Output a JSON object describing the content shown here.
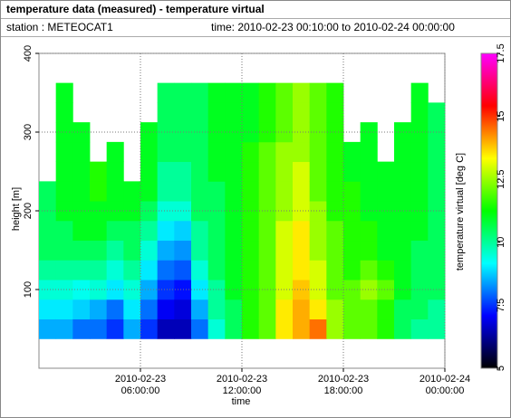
{
  "chart_data": {
    "type": "heatmap",
    "title": "temperature data (measured) - temperature virtual",
    "annotations": [
      "station : METEOCAT1",
      "time: 2010-02-23 00:10:00 to 2010-02-24 00:00:00"
    ],
    "x_label": "time",
    "y_label": "height [m]",
    "colorbar_label": "temperature virtual [deg C]",
    "x": [
      "2010-02-23 00:30:00",
      "2010-02-23 01:30:00",
      "2010-02-23 02:30:00",
      "2010-02-23 03:30:00",
      "2010-02-23 04:30:00",
      "2010-02-23 05:30:00",
      "2010-02-23 06:30:00",
      "2010-02-23 07:30:00",
      "2010-02-23 08:30:00",
      "2010-02-23 09:30:00",
      "2010-02-23 10:30:00",
      "2010-02-23 11:30:00",
      "2010-02-23 12:30:00",
      "2010-02-23 13:30:00",
      "2010-02-23 14:30:00",
      "2010-02-23 15:30:00",
      "2010-02-23 16:30:00",
      "2010-02-23 17:30:00",
      "2010-02-23 18:30:00",
      "2010-02-23 19:30:00",
      "2010-02-23 20:30:00",
      "2010-02-23 21:30:00",
      "2010-02-23 22:30:00",
      "2010-02-23 23:30:00"
    ],
    "y": [
      50,
      75,
      100,
      125,
      150,
      175,
      200,
      225,
      250,
      275,
      300,
      325,
      350
    ],
    "values": [
      [
        8.5,
        9,
        9.5,
        10,
        10.5,
        10.5,
        10.5,
        10.5,
        null,
        null,
        null,
        null,
        null
      ],
      [
        8.5,
        9,
        9.5,
        10,
        10.5,
        10.5,
        11,
        11,
        11,
        11,
        11,
        11,
        11
      ],
      [
        8,
        8.8,
        9.3,
        10,
        10.5,
        11,
        11,
        11,
        11,
        11,
        11,
        null,
        null
      ],
      [
        8,
        8.5,
        9.5,
        10,
        10.5,
        11,
        11,
        11.5,
        11.5,
        null,
        null,
        null,
        null
      ],
      [
        7.5,
        8,
        9,
        9.5,
        10,
        10.5,
        11,
        11,
        11,
        11,
        null,
        null,
        null
      ],
      [
        8.5,
        9,
        9.5,
        10,
        10.5,
        10.5,
        11,
        11,
        null,
        null,
        null,
        null,
        null
      ],
      [
        7.5,
        8,
        8.5,
        9,
        9.5,
        10,
        10.5,
        11,
        11,
        11,
        11,
        null,
        null
      ],
      [
        6.5,
        7,
        7.5,
        8,
        8.5,
        9,
        9.5,
        10,
        10,
        10.5,
        10.5,
        10.5,
        10.5
      ],
      [
        6.5,
        6.8,
        7.2,
        7.8,
        8.3,
        8.8,
        9.5,
        10,
        10,
        10.5,
        10.5,
        10.5,
        10.5
      ],
      [
        8,
        8.5,
        9,
        9.5,
        10,
        10,
        10.5,
        10.5,
        10.5,
        10.5,
        10.5,
        10.5,
        10.5
      ],
      [
        9.5,
        10,
        10,
        10.5,
        10.5,
        10.5,
        10.5,
        10.5,
        11,
        11,
        11,
        11,
        11
      ],
      [
        10.5,
        10.5,
        11,
        11,
        11,
        11,
        11,
        11,
        11,
        11,
        11,
        11,
        11
      ],
      [
        11.5,
        11.5,
        11.5,
        11.5,
        11.5,
        11.5,
        11.5,
        11.5,
        11.5,
        11.5,
        11,
        11,
        11
      ],
      [
        12,
        12,
        12,
        12,
        12,
        12,
        12,
        12,
        12,
        12,
        11.5,
        11.5,
        11.5
      ],
      [
        13.5,
        13.5,
        13,
        13,
        13,
        13,
        12.5,
        12.5,
        12.5,
        12.5,
        12,
        12,
        12
      ],
      [
        14,
        14,
        13.8,
        13.5,
        13.5,
        13.5,
        13,
        13,
        13,
        12.5,
        12.5,
        12.5,
        12.5
      ],
      [
        14.5,
        13.5,
        13,
        13,
        12.5,
        12.5,
        12.5,
        12,
        12,
        12,
        12,
        12,
        12
      ],
      [
        12.5,
        12.5,
        12,
        12,
        12,
        12,
        11.5,
        11.5,
        11.5,
        11.5,
        11.5,
        11.5,
        11.5
      ],
      [
        12,
        12,
        12,
        11.5,
        11.5,
        11.5,
        11.5,
        11.5,
        11,
        11,
        null,
        null,
        null
      ],
      [
        12,
        12,
        12.5,
        12,
        11.5,
        11.5,
        11,
        11,
        11,
        11,
        11,
        null,
        null
      ],
      [
        11.5,
        11.5,
        12,
        11.5,
        11,
        11,
        11,
        11,
        11,
        null,
        null,
        null,
        null
      ],
      [
        10.5,
        10.5,
        11,
        11,
        11,
        11,
        11,
        11,
        11,
        11,
        11,
        null,
        null
      ],
      [
        10,
        10.5,
        10.5,
        10.5,
        10.5,
        11,
        11,
        11,
        11,
        11,
        11,
        11,
        11
      ],
      [
        10,
        10,
        10.5,
        10.5,
        10.5,
        10.5,
        10.5,
        10.5,
        10.5,
        10.5,
        10.5,
        10.5,
        null
      ]
    ],
    "xlim": [
      "2010-02-23 00:00:00",
      "2010-02-24 00:00:00"
    ],
    "xticks": [
      {
        "value": "2010-02-23 06:00:00",
        "label": "2010-02-23\n06:00:00"
      },
      {
        "value": "2010-02-23 12:00:00",
        "label": "2010-02-23\n12:00:00"
      },
      {
        "value": "2010-02-23 18:00:00",
        "label": "2010-02-23\n18:00:00"
      },
      {
        "value": "2010-02-24 00:00:00",
        "label": "2010-02-24\n00:00:00"
      }
    ],
    "ylim": [
      0,
      400
    ],
    "yticks": [
      100,
      200,
      300,
      400
    ],
    "zlim": [
      5,
      17.5
    ],
    "zticks": [
      5,
      7.5,
      10,
      12.5,
      15,
      17.5
    ],
    "colormap": [
      "#000000",
      "#0000ff",
      "#00ffff",
      "#00ff00",
      "#ffff00",
      "#ff0000",
      "#ff00ff"
    ],
    "grid": true
  }
}
